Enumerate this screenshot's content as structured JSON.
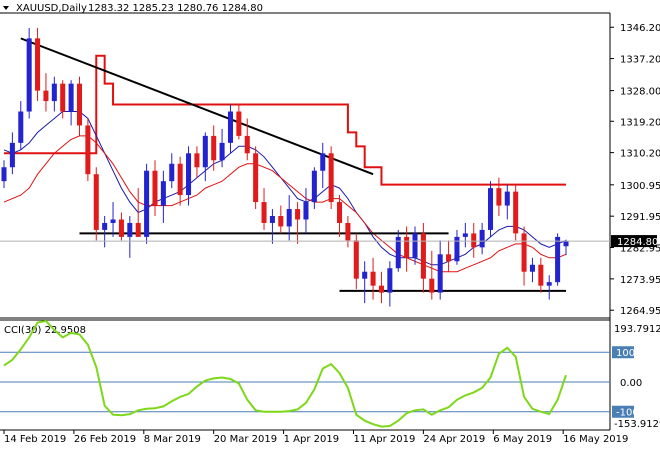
{
  "chart_data": {
    "type": "candlestick",
    "symbol_label": "XAUUSD,Daily",
    "ohlc_label": "1283.32 1285.23 1280.76 1284.80",
    "current_price": 1284.8,
    "current_price_label": "1284.80",
    "price_axis": {
      "ylim": [
        1263,
        1350
      ],
      "ticks": [
        "1346.20",
        "1337.20",
        "1328.00",
        "1319.20",
        "1310.20",
        "1300.95",
        "1291.95",
        "1282.95",
        "1273.95",
        "1264.95"
      ]
    },
    "date_axis_labels": [
      "14 Feb 2019",
      "26 Feb 2019",
      "8 Mar 2019",
      "20 Mar 2019",
      "1 Apr 2019",
      "11 Apr 2019",
      "24 Apr 2019",
      "6 May 2019",
      "16 May 2019"
    ],
    "candles": [
      [
        1302,
        1308,
        1300,
        1306
      ],
      [
        1306,
        1316,
        1304,
        1313
      ],
      [
        1313,
        1325,
        1311,
        1322
      ],
      [
        1322,
        1346,
        1320,
        1343
      ],
      [
        1343,
        1346,
        1325,
        1328
      ],
      [
        1328,
        1333,
        1322,
        1325
      ],
      [
        1325,
        1332,
        1322,
        1330
      ],
      [
        1330,
        1331,
        1320,
        1322
      ],
      [
        1322,
        1331,
        1318,
        1330
      ],
      [
        1330,
        1332,
        1315,
        1318
      ],
      [
        1318,
        1320,
        1302,
        1304
      ],
      [
        1304,
        1306,
        1285,
        1288
      ],
      [
        1288,
        1292,
        1283,
        1290
      ],
      [
        1290,
        1296,
        1286,
        1291
      ],
      [
        1291,
        1293,
        1285,
        1286
      ],
      [
        1286,
        1292,
        1280,
        1290
      ],
      [
        1290,
        1300,
        1286,
        1286
      ],
      [
        1286,
        1307,
        1284,
        1305
      ],
      [
        1305,
        1308,
        1292,
        1295
      ],
      [
        1295,
        1305,
        1290,
        1302
      ],
      [
        1302,
        1310,
        1300,
        1307
      ],
      [
        1307,
        1309,
        1295,
        1298
      ],
      [
        1298,
        1312,
        1295,
        1310
      ],
      [
        1310,
        1312,
        1303,
        1306
      ],
      [
        1306,
        1316,
        1302,
        1315
      ],
      [
        1315,
        1318,
        1305,
        1308
      ],
      [
        1308,
        1317,
        1306,
        1313
      ],
      [
        1313,
        1324,
        1310,
        1322
      ],
      [
        1322,
        1324,
        1314,
        1315
      ],
      [
        1315,
        1320,
        1308,
        1310
      ],
      [
        1310,
        1312,
        1294,
        1296
      ],
      [
        1296,
        1300,
        1288,
        1290
      ],
      [
        1290,
        1294,
        1284,
        1292
      ],
      [
        1292,
        1295,
        1287,
        1289
      ],
      [
        1289,
        1298,
        1285,
        1294
      ],
      [
        1294,
        1296,
        1284,
        1291
      ],
      [
        1291,
        1300,
        1287,
        1296
      ],
      [
        1296,
        1306,
        1294,
        1305
      ],
      [
        1305,
        1313,
        1300,
        1310
      ],
      [
        1310,
        1312,
        1294,
        1296
      ],
      [
        1296,
        1298,
        1286,
        1290
      ],
      [
        1290,
        1292,
        1283,
        1285
      ],
      [
        1285,
        1287,
        1271,
        1274
      ],
      [
        1274,
        1279,
        1267,
        1276
      ],
      [
        1276,
        1280,
        1268,
        1272
      ],
      [
        1272,
        1276,
        1267,
        1270
      ],
      [
        1270,
        1279,
        1266,
        1277
      ],
      [
        1277,
        1288,
        1276,
        1286
      ],
      [
        1286,
        1289,
        1276,
        1280
      ],
      [
        1280,
        1289,
        1278,
        1287
      ],
      [
        1287,
        1290,
        1270,
        1274
      ],
      [
        1274,
        1282,
        1268,
        1270
      ],
      [
        1270,
        1285,
        1268,
        1281
      ],
      [
        1281,
        1285,
        1276,
        1279
      ],
      [
        1279,
        1288,
        1278,
        1286
      ],
      [
        1286,
        1290,
        1283,
        1287
      ],
      [
        1287,
        1290,
        1280,
        1283
      ],
      [
        1283,
        1290,
        1281,
        1288
      ],
      [
        1288,
        1302,
        1286,
        1300
      ],
      [
        1300,
        1303,
        1292,
        1295
      ],
      [
        1295,
        1301,
        1291,
        1299
      ],
      [
        1299,
        1301,
        1285,
        1287
      ],
      [
        1287,
        1289,
        1272,
        1276
      ],
      [
        1276,
        1280,
        1273,
        1278
      ],
      [
        1278,
        1280,
        1270,
        1272
      ],
      [
        1272,
        1275,
        1268,
        1273
      ],
      [
        1273,
        1287,
        1272,
        1286
      ],
      [
        1283.32,
        1285.23,
        1280.76,
        1284.8
      ]
    ],
    "cci": {
      "label": "CCI(30) 22.9508",
      "ylim": [
        -158,
        205
      ],
      "top_label": "193.7912",
      "bottom_label": "-153.9129",
      "levels": [
        100,
        0,
        -100
      ],
      "level_labels": [
        "100",
        "0.00",
        "-100"
      ],
      "values": [
        55,
        75,
        110,
        150,
        200,
        205,
        175,
        150,
        165,
        160,
        125,
        50,
        -80,
        -110,
        -112,
        -108,
        -95,
        -90,
        -88,
        -82,
        -65,
        -50,
        -40,
        -15,
        5,
        12,
        15,
        10,
        -5,
        -60,
        -95,
        -100,
        -100,
        -100,
        -98,
        -92,
        -70,
        -25,
        45,
        60,
        30,
        -20,
        -110,
        -130,
        -142,
        -150,
        -148,
        -130,
        -105,
        -95,
        -92,
        -110,
        -95,
        -85,
        -60,
        -45,
        -35,
        -20,
        15,
        95,
        115,
        85,
        -50,
        -90,
        -100,
        -108,
        -60,
        22.95
      ]
    },
    "ma_blue": [
      1311,
      1310,
      1311,
      1313,
      1316,
      1318,
      1320,
      1322,
      1322,
      1322,
      1320,
      1315,
      1310,
      1305,
      1300,
      1296,
      1293,
      1294,
      1296,
      1297,
      1298,
      1299,
      1301,
      1303,
      1305,
      1307,
      1308,
      1310,
      1312,
      1312,
      1311,
      1309,
      1306,
      1303,
      1300,
      1297,
      1296,
      1297,
      1299,
      1301,
      1300,
      1297,
      1293,
      1290,
      1286,
      1283,
      1281,
      1280,
      1280,
      1280,
      1279,
      1278,
      1278,
      1279,
      1280,
      1281,
      1283,
      1284,
      1286,
      1288,
      1289,
      1289,
      1288,
      1286,
      1284,
      1283,
      1284,
      1285
    ],
    "ma_red": [
      1296,
      1297,
      1298,
      1300,
      1304,
      1307,
      1310,
      1312,
      1314,
      1315,
      1315,
      1313,
      1310,
      1307,
      1303,
      1299,
      1296,
      1295,
      1295,
      1295,
      1295,
      1296,
      1297,
      1298,
      1300,
      1301,
      1302,
      1304,
      1306,
      1307,
      1307,
      1306,
      1305,
      1303,
      1301,
      1299,
      1297,
      1296,
      1296,
      1297,
      1297,
      1295,
      1293,
      1290,
      1287,
      1285,
      1283,
      1281,
      1280,
      1279,
      1278,
      1277,
      1276,
      1276,
      1276,
      1277,
      1278,
      1279,
      1280,
      1282,
      1283,
      1284,
      1284,
      1283,
      1281,
      1280,
      1280,
      1281
    ],
    "envelope_upper": [
      1310,
      1310,
      1310,
      1310,
      1310,
      1310,
      1310,
      1310,
      1310,
      1310,
      1310,
      1338,
      1330,
      1324,
      1324,
      1324,
      1324,
      1324,
      1324,
      1324,
      1324,
      1324,
      1324,
      1324,
      1324,
      1324,
      1324,
      1324,
      1324,
      1324,
      1324,
      1324,
      1324,
      1324,
      1324,
      1324,
      1324,
      1324,
      1324,
      1324,
      1324,
      1316,
      1312,
      1306,
      1306,
      1301,
      1301,
      1301,
      1301,
      1301,
      1301,
      1301,
      1301,
      1301,
      1301,
      1301,
      1301,
      1301,
      1301,
      1301,
      1301,
      1301,
      1301,
      1301,
      1301,
      1301,
      1301,
      1301
    ],
    "trendlines": [
      {
        "from": [
          2,
          1343
        ],
        "to": [
          44,
          1304
        ]
      },
      {
        "from": [
          9,
          1287
        ],
        "to": [
          53,
          1287
        ]
      },
      {
        "from": [
          40,
          1270.5
        ],
        "to": [
          67,
          1270.5
        ]
      }
    ],
    "colors": {
      "bull": "#2323d0",
      "bear": "#e11b1b",
      "ma_blue": "#1a1aa8",
      "ma_red": "#e01010",
      "envelope": "#e01010",
      "cci_line": "#7dd819",
      "trendline": "#000000",
      "level_line": "#4a7fb5",
      "price_tag_bg": "#000000",
      "price_tag_text": "#ffffff"
    }
  }
}
